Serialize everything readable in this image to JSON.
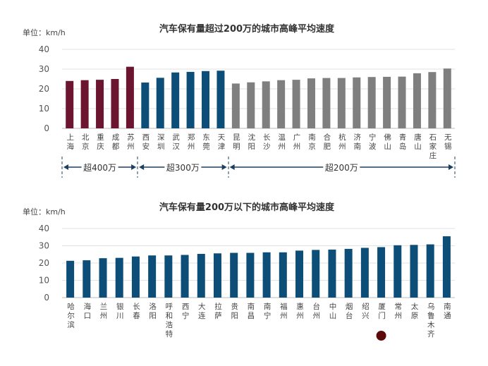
{
  "chart_data": [
    {
      "type": "bar",
      "title": "汽车保有量超过200万的城市高峰平均速度",
      "unit": "单位：km/h",
      "ylim": [
        0,
        40
      ],
      "yticks": [
        0,
        10,
        20,
        30,
        40
      ],
      "grid": true,
      "categories": [
        "上海",
        "北京",
        "重庆",
        "成都",
        "苏州",
        "西安",
        "深圳",
        "武汉",
        "郑州",
        "东莞",
        "天津",
        "昆明",
        "沈阳",
        "长沙",
        "温州",
        "广州",
        "南京",
        "合肥",
        "杭州",
        "济南",
        "宁波",
        "佛山",
        "青岛",
        "唐山",
        "石家庄",
        "无锡"
      ],
      "values": [
        24.0,
        24.4,
        24.6,
        25.0,
        31.2,
        23.2,
        25.6,
        28.3,
        28.6,
        29.0,
        29.2,
        22.7,
        23.3,
        23.8,
        24.4,
        24.6,
        25.3,
        25.5,
        25.5,
        25.8,
        26.0,
        26.1,
        26.2,
        27.9,
        28.5,
        30.3
      ],
      "groups": [
        {
          "label": "超400万",
          "start": 0,
          "end": 4,
          "color": "#6b1530"
        },
        {
          "label": "超300万",
          "start": 5,
          "end": 10,
          "color": "#0d4e78"
        },
        {
          "label": "超200万",
          "start": 11,
          "end": 25,
          "color": "#7f7f7f"
        }
      ]
    },
    {
      "type": "bar",
      "title": "汽车保有量200万以下的城市高峰平均速度",
      "unit": "单位：km/h",
      "ylim": [
        0,
        40
      ],
      "yticks": [
        0,
        10,
        20,
        30,
        40
      ],
      "grid": true,
      "categories": [
        "哈尔滨",
        "海口",
        "兰州",
        "银川",
        "长春",
        "洛阳",
        "呼和浩特",
        "西宁",
        "大连",
        "拉萨",
        "贵阳",
        "南昌",
        "南宁",
        "福州",
        "惠州",
        "台州",
        "中山",
        "烟台",
        "绍兴",
        "厦门",
        "常州",
        "太原",
        "乌鲁木齐",
        "南通"
      ],
      "values": [
        21.3,
        21.6,
        22.8,
        23.0,
        23.8,
        24.4,
        24.4,
        24.7,
        25.3,
        25.6,
        25.9,
        25.9,
        26.2,
        26.2,
        27.2,
        27.6,
        27.8,
        28.2,
        28.8,
        29.2,
        30.3,
        30.5,
        30.8,
        35.5
      ],
      "color": "#0d4e78",
      "highlight": {
        "category": "厦门",
        "marker_color": "#5c0a0a"
      }
    }
  ]
}
